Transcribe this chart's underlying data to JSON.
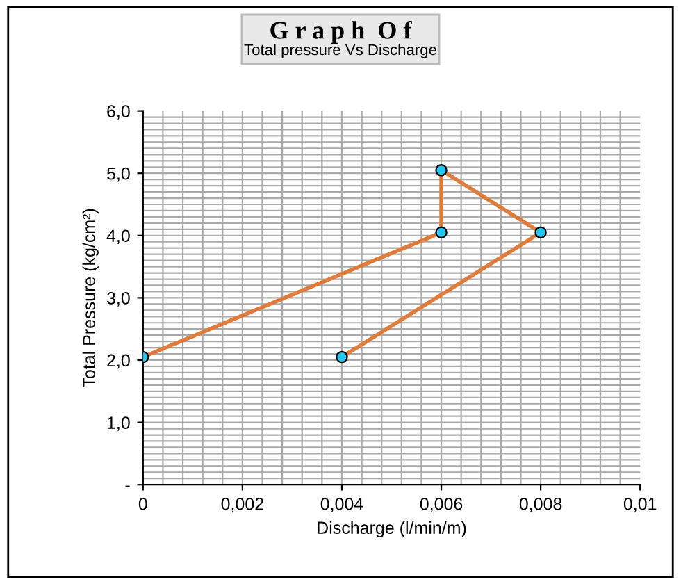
{
  "chart_data": {
    "type": "line",
    "title": "G r a p h  O f",
    "subtitle": "Total pressure Vs Discharge",
    "xlabel": "Discharge (l/min/m)",
    "ylabel": "Total Pressure (kg/cm²)",
    "x": [
      0,
      0.006,
      0.006,
      0.008,
      0.004
    ],
    "series": [
      {
        "color": "#e07b39",
        "values": [
          2.05,
          4.05,
          5.05,
          4.05,
          2.05
        ]
      }
    ],
    "marker": "circle",
    "line_style": "solid",
    "grid": true,
    "xlim": [
      0,
      0.01
    ],
    "xticks": [
      0,
      {
        "value": 0.002,
        "label": "0,002"
      },
      {
        "value": 0.004,
        "label": "0,004"
      },
      {
        "value": 0.006,
        "label": "0,006"
      },
      {
        "value": 0.008,
        "label": "0,008"
      },
      {
        "value": 0.01,
        "label": "0,01"
      }
    ],
    "ylim": [
      0,
      6
    ],
    "yticks": [
      {
        "value": 0,
        "label": "-"
      },
      {
        "value": 1,
        "label": "1,0"
      },
      {
        "value": 2,
        "label": "2,0"
      },
      {
        "value": 3,
        "label": "3,0"
      },
      {
        "value": 4,
        "label": "4,0"
      },
      {
        "value": 5,
        "label": "5,0"
      },
      {
        "value": 6,
        "label": "6,0"
      }
    ]
  }
}
